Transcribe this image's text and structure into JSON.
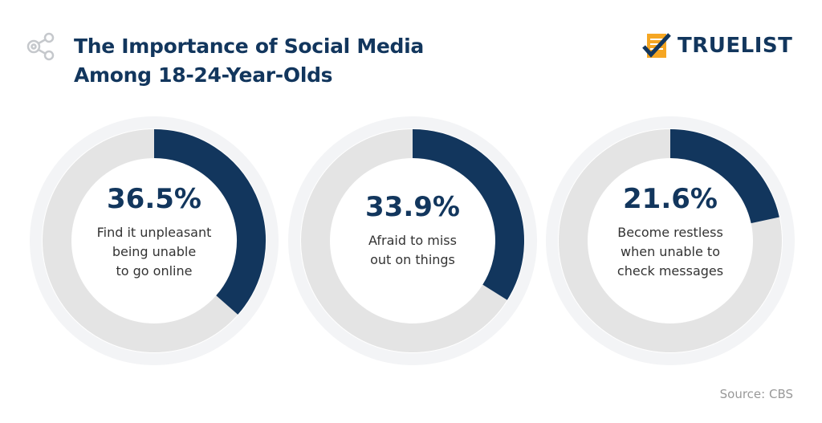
{
  "header": {
    "title_line1": "The Importance of Social Media",
    "title_line2": "Among 18-24-Year-Olds",
    "icon": "share-nodes-icon"
  },
  "logo": {
    "text": "TRUELIST",
    "icon": "checklist-icon"
  },
  "source": "Source: CBS",
  "colors": {
    "accent": "#12365d",
    "track": "#e4e4e4",
    "halo": "#f3f4f6",
    "logo_orange": "#f5a623"
  },
  "chart_data": {
    "type": "pie",
    "variant": "donut",
    "items": [
      {
        "value": 36.5,
        "label_pct": "36.5%",
        "label": [
          "Find it unpleasant",
          "being unable",
          "to go online"
        ]
      },
      {
        "value": 33.9,
        "label_pct": "33.9%",
        "label": [
          "Afraid to miss",
          "out on things"
        ]
      },
      {
        "value": 21.6,
        "label_pct": "21.6%",
        "label": [
          "Become restless",
          "when unable to",
          "check messages"
        ]
      }
    ]
  }
}
